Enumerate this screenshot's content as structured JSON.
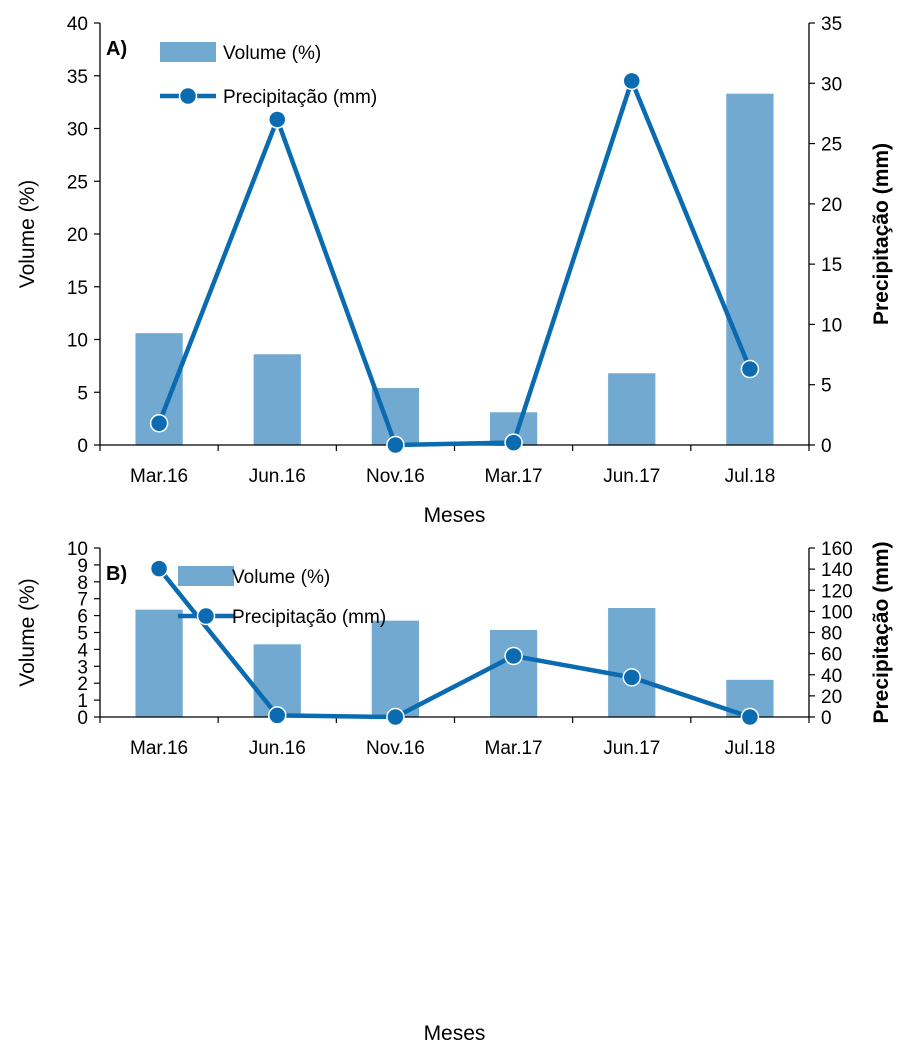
{
  "colors": {
    "bar": "#72a9d1",
    "line": "#0b6bb0",
    "marker_stroke": "#ffffff",
    "axis": "#000000"
  },
  "chart_data": [
    {
      "type": "bar",
      "panel_label": "A)",
      "categories": [
        "Mar.16",
        "Jun.16",
        "Nov.16",
        "Mar.17",
        "Jun.17",
        "Jul.18"
      ],
      "series": [
        {
          "name": "Volume (%)",
          "kind": "bar",
          "axis": "left",
          "values": [
            10.6,
            8.6,
            5.4,
            3.1,
            6.8,
            33.3
          ]
        },
        {
          "name": "Precipitação (mm)",
          "kind": "line",
          "axis": "right",
          "values": [
            1.8,
            27.0,
            0.0,
            0.2,
            30.2,
            6.3
          ]
        }
      ],
      "xlabel": "Meses",
      "ylabel": "Volume (%)",
      "y2label": "Precipitação (mm)",
      "ylim": [
        0,
        40
      ],
      "yticks": [
        0,
        5,
        10,
        15,
        20,
        25,
        30,
        35,
        40
      ],
      "y2lim": [
        0,
        35
      ],
      "y2ticks": [
        0,
        5,
        10,
        15,
        20,
        25,
        30,
        35
      ],
      "legend": "top-left"
    },
    {
      "type": "bar",
      "panel_label": "B)",
      "categories": [
        "Mar.16",
        "Jun.16",
        "Nov.16",
        "Mar.17",
        "Jun.17",
        "Jul.18"
      ],
      "series": [
        {
          "name": "Volume (%)",
          "kind": "bar",
          "axis": "left",
          "values": [
            6.35,
            4.3,
            5.7,
            5.15,
            6.45,
            2.2
          ]
        },
        {
          "name": "Precipitação (mm)",
          "kind": "line",
          "axis": "right",
          "values": [
            140.5,
            1.5,
            0.0,
            57.8,
            37.5,
            0.0
          ]
        }
      ],
      "xlabel": "Meses",
      "ylabel": "Volume (%)",
      "y2label": "Precipitação (mm)",
      "ylim": [
        0,
        10
      ],
      "yticks": [
        0,
        1,
        2,
        3,
        4,
        5,
        6,
        7,
        8,
        9,
        10
      ],
      "y2lim": [
        0,
        160
      ],
      "y2ticks": [
        0,
        20,
        40,
        60,
        80,
        100,
        120,
        140,
        160
      ],
      "legend": "top-left"
    }
  ]
}
